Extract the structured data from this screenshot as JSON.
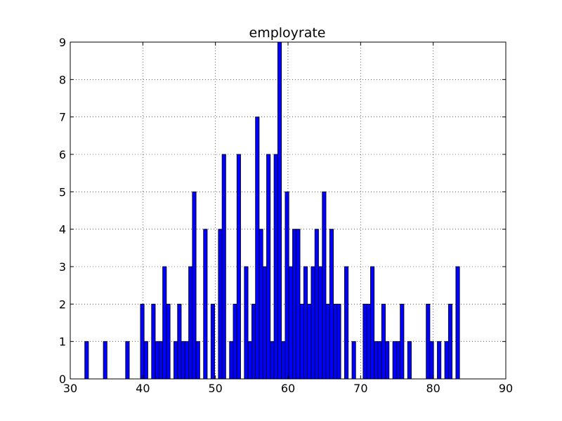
{
  "chart_data": {
    "type": "bar",
    "title": "employrate",
    "xlabel": "",
    "ylabel": "",
    "xlim": [
      30,
      90
    ],
    "ylim": [
      0,
      9
    ],
    "xticks": [
      30,
      40,
      50,
      60,
      70,
      80,
      90
    ],
    "yticks": [
      0,
      1,
      2,
      3,
      4,
      5,
      6,
      7,
      8,
      9
    ],
    "grid": true,
    "bar_color": "#0000ff",
    "edge_color": "#000000",
    "bin_start": 32.0,
    "bin_width": 0.5112,
    "counts": [
      1,
      0,
      0,
      0,
      0,
      1,
      0,
      0,
      0,
      0,
      0,
      1,
      0,
      0,
      0,
      2,
      1,
      0,
      2,
      1,
      1,
      3,
      2,
      0,
      1,
      2,
      1,
      1,
      3,
      5,
      1,
      0,
      4,
      0,
      2,
      0,
      4,
      6,
      0,
      1,
      2,
      6,
      0,
      3,
      1,
      2,
      7,
      4,
      3,
      6,
      1,
      6,
      9,
      1,
      5,
      3,
      4,
      4,
      2,
      3,
      2,
      3,
      4,
      3,
      5,
      2,
      4,
      2,
      2,
      0,
      3,
      0,
      1,
      0,
      0,
      2,
      2,
      3,
      1,
      1,
      2,
      1,
      0,
      1,
      1,
      2,
      0,
      1,
      0,
      0,
      0,
      0,
      2,
      1,
      0,
      1,
      0,
      1,
      2,
      0,
      3
    ]
  }
}
